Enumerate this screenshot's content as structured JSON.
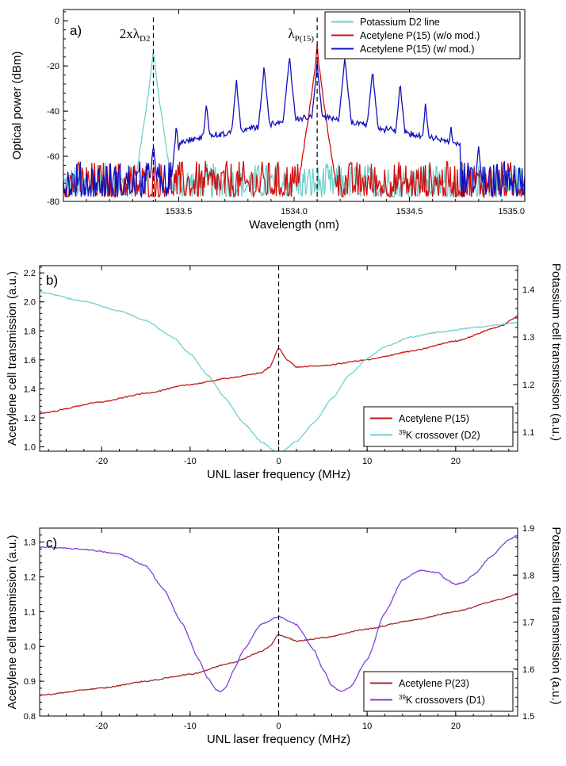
{
  "chart_data": [
    {
      "panel_label": "a)",
      "type": "line",
      "xlabel": "Wavelength (nm)",
      "ylabel": "Optical power (dBm)",
      "xlim": [
        1533.0,
        1535.0
      ],
      "ylim": [
        -80,
        5
      ],
      "xticks": [
        1533.5,
        1534.0,
        1534.5,
        1535.0
      ],
      "xtick_labels": [
        "1533.5",
        "1534.0",
        "1534.5",
        "1535.0"
      ],
      "yticks": [
        0,
        -20,
        -40,
        -60,
        -80
      ],
      "ytick_labels": [
        "0",
        "-20",
        "-40",
        "-60",
        "-80"
      ],
      "legend_position": "top-right",
      "annotations": [
        {
          "base": "2xλ",
          "sub": "D2",
          "x": 1533.39
        },
        {
          "base": "λ",
          "sub": "P(15)",
          "x": 1534.1
        }
      ],
      "series": [
        {
          "name": "Potassium D2 line",
          "color": "#6fd0d0",
          "shape": "peak",
          "peak_x": 1533.39,
          "peak_value": -12,
          "noise_floor": [
            -78,
            -63
          ]
        },
        {
          "name": "Acetylene P(15) (w/o mod.)",
          "color": "#d01010",
          "shape": "peak",
          "peak_x": 1534.1,
          "peak_value": -11,
          "noise_floor": [
            -78,
            -62
          ]
        },
        {
          "name": "Acetylene P(15) (w/ mod.)",
          "color": "#1010c0",
          "shape": "comb",
          "peaks": [
            {
              "x": 1533.39,
              "y": -54
            },
            {
              "x": 1533.49,
              "y": -46
            },
            {
              "x": 1533.62,
              "y": -36
            },
            {
              "x": 1533.75,
              "y": -26
            },
            {
              "x": 1533.87,
              "y": -20
            },
            {
              "x": 1533.98,
              "y": -15
            },
            {
              "x": 1534.1,
              "y": -18
            },
            {
              "x": 1534.22,
              "y": -15
            },
            {
              "x": 1534.34,
              "y": -21
            },
            {
              "x": 1534.46,
              "y": -27
            },
            {
              "x": 1534.57,
              "y": -36
            },
            {
              "x": 1534.68,
              "y": -46
            },
            {
              "x": 1534.8,
              "y": -55
            }
          ],
          "noise_floor": [
            -78,
            -62
          ]
        }
      ]
    },
    {
      "panel_label": "b)",
      "type": "line",
      "xlabel": "UNL laser frequency (MHz)",
      "ylabel": "Acetylene cell transmission (a.u.)",
      "y2label": "Potassium cell transmission (a.u.)",
      "xlim": [
        -27,
        27
      ],
      "ylim": [
        0.97,
        2.25
      ],
      "y2lim": [
        1.06,
        1.45
      ],
      "xticks": [
        -20,
        -10,
        0,
        10,
        20
      ],
      "xtick_labels": [
        "-20",
        "-10",
        "0",
        "10",
        "20"
      ],
      "yticks": [
        1.0,
        1.2,
        1.4,
        1.6,
        1.8,
        2.0,
        2.2
      ],
      "ytick_labels": [
        "1.0",
        "1.2",
        "1.4",
        "1.6",
        "1.8",
        "2.0",
        "2.2"
      ],
      "y2ticks": [
        1.1,
        1.2,
        1.3,
        1.4
      ],
      "y2tick_labels": [
        "1.1",
        "1.2",
        "1.3",
        "1.4"
      ],
      "vline_x": 0,
      "legend_position": "bottom-right",
      "series": [
        {
          "name": "Acetylene P(15)",
          "sup": "",
          "color": "#c81414",
          "axis": "left",
          "x": [
            -27,
            -20,
            -15,
            -10,
            -5,
            -2,
            -1,
            0,
            1,
            2,
            5,
            10,
            15,
            20,
            25,
            27
          ],
          "y": [
            1.23,
            1.31,
            1.37,
            1.43,
            1.48,
            1.51,
            1.55,
            1.68,
            1.6,
            1.55,
            1.56,
            1.6,
            1.66,
            1.73,
            1.83,
            1.9
          ]
        },
        {
          "name": "K crossover (D2)",
          "sup": "39",
          "color": "#6fd0d0",
          "axis": "right",
          "x": [
            -27,
            -22,
            -18,
            -15,
            -12,
            -10,
            -8,
            -6,
            -4,
            -2,
            0,
            2,
            4,
            6,
            8,
            10,
            12,
            15,
            18,
            22,
            27
          ],
          "y": [
            1.395,
            1.375,
            1.355,
            1.335,
            1.3,
            1.265,
            1.22,
            1.17,
            1.12,
            1.08,
            1.055,
            1.08,
            1.12,
            1.17,
            1.22,
            1.255,
            1.28,
            1.3,
            1.31,
            1.32,
            1.33
          ]
        }
      ]
    },
    {
      "panel_label": "c)",
      "type": "line",
      "xlabel": "UNL laser frequency (MHz)",
      "ylabel": "Acetylene cell transmission (a.u.)",
      "y2label": "Potassium cell transmission (a.u.)",
      "xlim": [
        -27,
        27
      ],
      "ylim": [
        0.8,
        1.34
      ],
      "y2lim": [
        1.5,
        1.9
      ],
      "xticks": [
        -20,
        -10,
        0,
        10,
        20
      ],
      "xtick_labels": [
        "-20",
        "-10",
        "0",
        "10",
        "20"
      ],
      "yticks": [
        0.8,
        0.9,
        1.0,
        1.1,
        1.2,
        1.3
      ],
      "ytick_labels": [
        "0.8",
        "0.9",
        "1.0",
        "1.1",
        "1.2",
        "1.3"
      ],
      "y2ticks": [
        1.5,
        1.6,
        1.7,
        1.8,
        1.9
      ],
      "y2tick_labels": [
        "1.5",
        "1.6",
        "1.7",
        "1.8",
        "1.9"
      ],
      "vline_x": 0,
      "legend_position": "bottom-right",
      "series": [
        {
          "name": "Acetylene P(23)",
          "sup": "",
          "color": "#a02828",
          "axis": "left",
          "x": [
            -27,
            -20,
            -15,
            -10,
            -5,
            -2,
            -1,
            0,
            1,
            2,
            5,
            10,
            15,
            20,
            25,
            27
          ],
          "y": [
            0.86,
            0.88,
            0.9,
            0.92,
            0.955,
            0.985,
            1.0,
            1.035,
            1.025,
            1.015,
            1.025,
            1.05,
            1.075,
            1.1,
            1.135,
            1.15
          ]
        },
        {
          "name": "K crossovers (D1)",
          "sup": "39",
          "color": "#8040d8",
          "axis": "right",
          "x": [
            -27,
            -22,
            -18,
            -15,
            -13,
            -11,
            -9,
            -8,
            -7,
            -6.5,
            -6,
            -5,
            -4,
            -2,
            0,
            2,
            4,
            5,
            6,
            7,
            8,
            10,
            12,
            14,
            16,
            18,
            19,
            20,
            21,
            22,
            24,
            26,
            27
          ],
          "y": [
            1.86,
            1.855,
            1.845,
            1.82,
            1.77,
            1.7,
            1.62,
            1.58,
            1.555,
            1.552,
            1.56,
            1.6,
            1.64,
            1.695,
            1.712,
            1.695,
            1.64,
            1.6,
            1.565,
            1.552,
            1.56,
            1.62,
            1.72,
            1.79,
            1.81,
            1.805,
            1.79,
            1.78,
            1.785,
            1.8,
            1.84,
            1.875,
            1.885
          ]
        }
      ]
    }
  ]
}
